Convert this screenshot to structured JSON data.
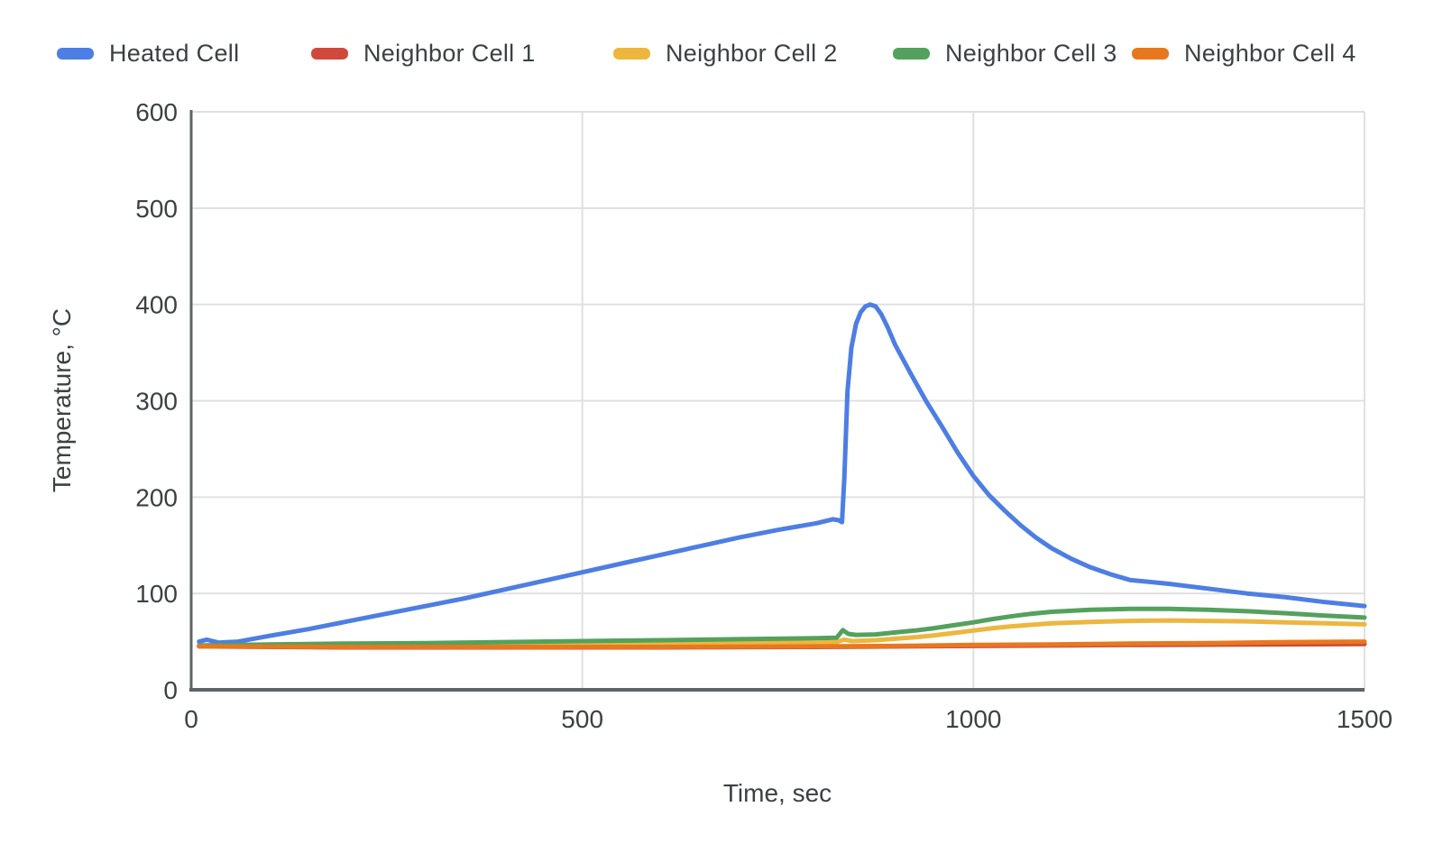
{
  "colors": {
    "background": "#ffffff",
    "text": "#3c4043",
    "axis_line": "#5f6368",
    "gridline": "#e0e0e0"
  },
  "chart_data": {
    "type": "line",
    "title": "",
    "xlabel": "Time, sec",
    "ylabel": "Temperature, °C",
    "xlim": [
      0,
      1500
    ],
    "ylim": [
      0,
      600
    ],
    "x_ticks": [
      0,
      500,
      1000,
      1500
    ],
    "y_ticks": [
      0,
      100,
      200,
      300,
      400,
      500,
      600
    ],
    "grid": true,
    "legend_position": "top",
    "series": [
      {
        "name": "Heated Cell",
        "color": "#4d7ee3",
        "points": [
          [
            10,
            50
          ],
          [
            20,
            52
          ],
          [
            35,
            49
          ],
          [
            60,
            50
          ],
          [
            100,
            56
          ],
          [
            150,
            63
          ],
          [
            200,
            71
          ],
          [
            250,
            79
          ],
          [
            300,
            87
          ],
          [
            350,
            95
          ],
          [
            400,
            104
          ],
          [
            450,
            113
          ],
          [
            500,
            122
          ],
          [
            550,
            131
          ],
          [
            600,
            140
          ],
          [
            650,
            149
          ],
          [
            700,
            158
          ],
          [
            750,
            166
          ],
          [
            800,
            173
          ],
          [
            820,
            177
          ],
          [
            828,
            176
          ],
          [
            832,
            174
          ],
          [
            835,
            220
          ],
          [
            839,
            310
          ],
          [
            844,
            355
          ],
          [
            850,
            380
          ],
          [
            856,
            392
          ],
          [
            862,
            398
          ],
          [
            868,
            400
          ],
          [
            875,
            398
          ],
          [
            882,
            390
          ],
          [
            890,
            377
          ],
          [
            900,
            358
          ],
          [
            920,
            328
          ],
          [
            940,
            299
          ],
          [
            960,
            273
          ],
          [
            980,
            246
          ],
          [
            1000,
            222
          ],
          [
            1020,
            202
          ],
          [
            1040,
            186
          ],
          [
            1060,
            171
          ],
          [
            1080,
            158
          ],
          [
            1100,
            147
          ],
          [
            1125,
            136
          ],
          [
            1150,
            127
          ],
          [
            1175,
            120
          ],
          [
            1200,
            114
          ],
          [
            1250,
            110
          ],
          [
            1300,
            105
          ],
          [
            1350,
            100
          ],
          [
            1400,
            96
          ],
          [
            1450,
            91
          ],
          [
            1500,
            87
          ]
        ]
      },
      {
        "name": "Neighbor Cell 1",
        "color": "#cf4a3c",
        "points": [
          [
            10,
            45
          ],
          [
            200,
            44
          ],
          [
            400,
            44
          ],
          [
            600,
            44
          ],
          [
            800,
            44.5
          ],
          [
            1000,
            45.5
          ],
          [
            1200,
            46.5
          ],
          [
            1350,
            47
          ],
          [
            1500,
            47.5
          ]
        ]
      },
      {
        "name": "Neighbor Cell 2",
        "color": "#edb63d",
        "points": [
          [
            10,
            45
          ],
          [
            100,
            45.5
          ],
          [
            200,
            46
          ],
          [
            300,
            46.5
          ],
          [
            400,
            47
          ],
          [
            500,
            47.5
          ],
          [
            600,
            48
          ],
          [
            700,
            48.5
          ],
          [
            800,
            49
          ],
          [
            825,
            49.5
          ],
          [
            835,
            52
          ],
          [
            845,
            50.5
          ],
          [
            875,
            51.5
          ],
          [
            900,
            53
          ],
          [
            925,
            54.5
          ],
          [
            950,
            56.5
          ],
          [
            975,
            59
          ],
          [
            1000,
            61.5
          ],
          [
            1025,
            64
          ],
          [
            1050,
            66
          ],
          [
            1075,
            67.5
          ],
          [
            1100,
            69
          ],
          [
            1150,
            70.5
          ],
          [
            1200,
            71.5
          ],
          [
            1250,
            72
          ],
          [
            1300,
            71.5
          ],
          [
            1350,
            71
          ],
          [
            1400,
            70
          ],
          [
            1450,
            69
          ],
          [
            1500,
            68
          ]
        ]
      },
      {
        "name": "Neighbor Cell 3",
        "color": "#54a15d",
        "points": [
          [
            10,
            46
          ],
          [
            100,
            47
          ],
          [
            200,
            48
          ],
          [
            300,
            48.5
          ],
          [
            400,
            49.5
          ],
          [
            500,
            50.5
          ],
          [
            600,
            51.5
          ],
          [
            700,
            52.5
          ],
          [
            800,
            53.5
          ],
          [
            825,
            54
          ],
          [
            833,
            62
          ],
          [
            840,
            58
          ],
          [
            850,
            57
          ],
          [
            875,
            57.5
          ],
          [
            900,
            59.5
          ],
          [
            925,
            61.5
          ],
          [
            950,
            64
          ],
          [
            975,
            67
          ],
          [
            1000,
            70
          ],
          [
            1025,
            73.5
          ],
          [
            1050,
            76.5
          ],
          [
            1075,
            79
          ],
          [
            1100,
            81
          ],
          [
            1150,
            83
          ],
          [
            1200,
            84
          ],
          [
            1250,
            84
          ],
          [
            1300,
            83
          ],
          [
            1350,
            81.5
          ],
          [
            1400,
            79.5
          ],
          [
            1450,
            77
          ],
          [
            1500,
            75
          ]
        ]
      },
      {
        "name": "Neighbor Cell 4",
        "color": "#e8781e",
        "points": [
          [
            10,
            45
          ],
          [
            200,
            44.5
          ],
          [
            400,
            44.5
          ],
          [
            600,
            44.5
          ],
          [
            800,
            45
          ],
          [
            900,
            45.5
          ],
          [
            1000,
            46.5
          ],
          [
            1100,
            47
          ],
          [
            1200,
            48
          ],
          [
            1300,
            48.5
          ],
          [
            1400,
            49.5
          ],
          [
            1500,
            50
          ]
        ]
      }
    ]
  }
}
